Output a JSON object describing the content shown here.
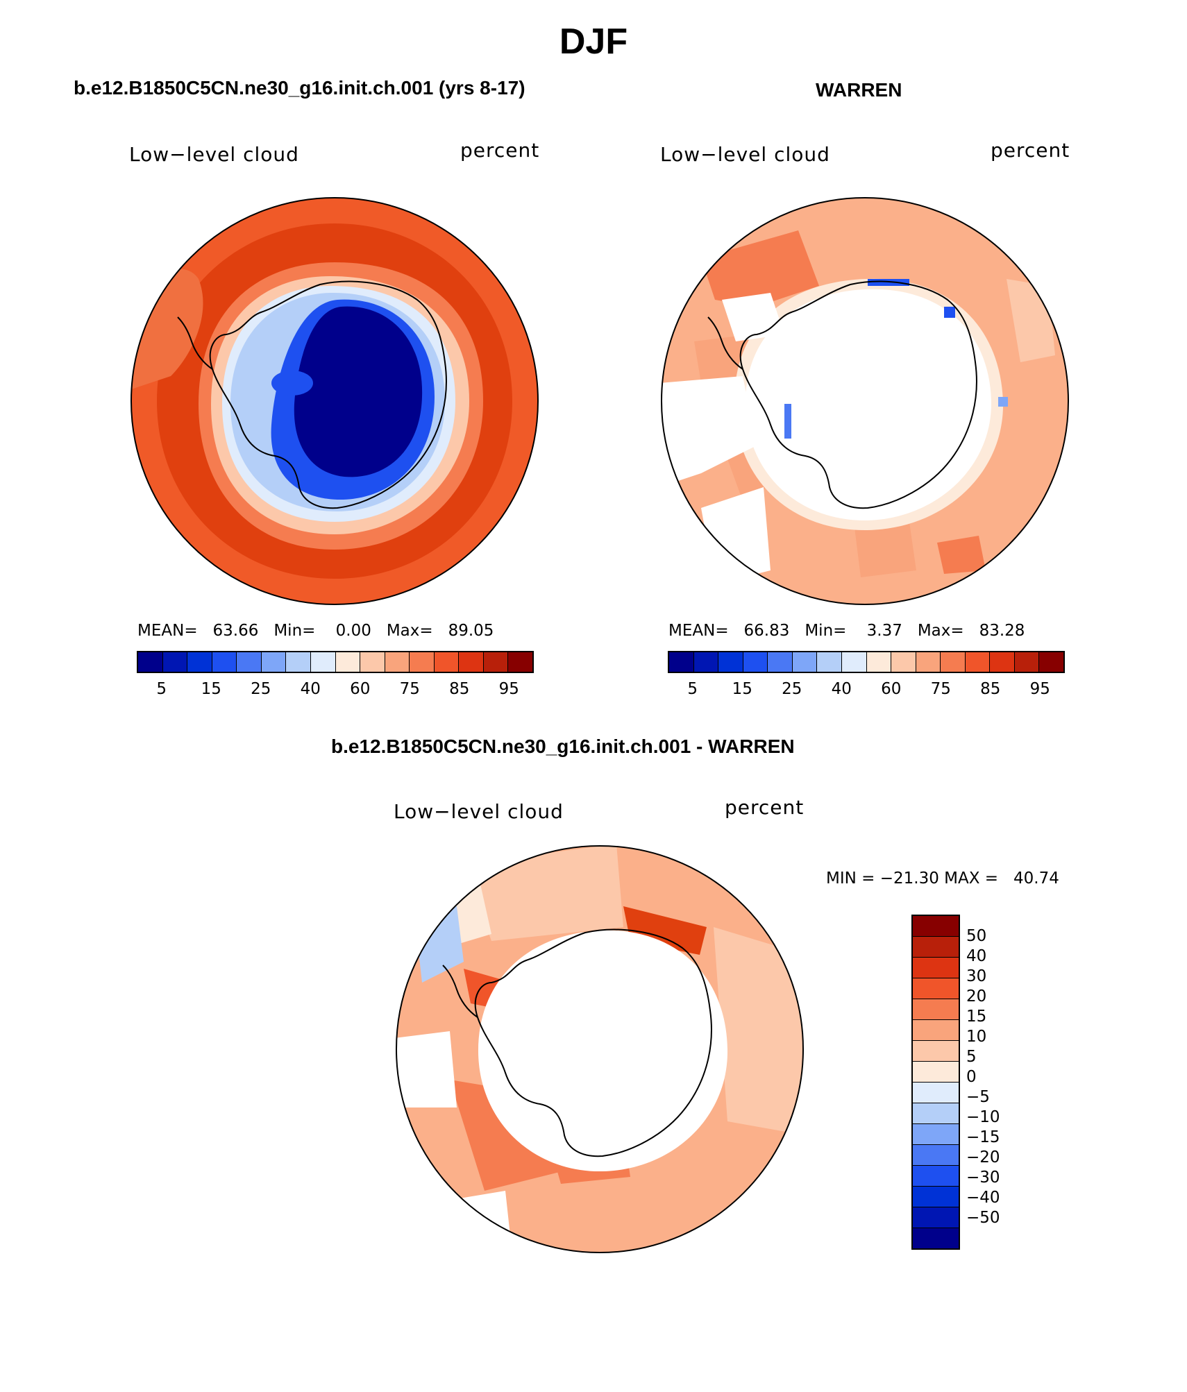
{
  "figure_title": "DJF",
  "panels": [
    {
      "header": "b.e12.B1850C5CN.ne30_g16.init.ch.001 (yrs 8-17)",
      "variable": "Low−level cloud",
      "units": "percent",
      "stats": {
        "mean_label": "MEAN=",
        "mean": "63.66",
        "min_label": "Min=",
        "min": "0.00",
        "max_label": "Max=",
        "max": "89.05"
      }
    },
    {
      "header": "WARREN",
      "variable": "Low−level cloud",
      "units": "percent",
      "stats": {
        "mean_label": "MEAN=",
        "mean": "66.83",
        "min_label": "Min=",
        "min": "3.37",
        "max_label": "Max=",
        "max": "83.28"
      }
    },
    {
      "header": "b.e12.B1850C5CN.ne30_g16.init.ch.001 - WARREN",
      "variable": "Low−level cloud",
      "units": "percent",
      "minmax": "MIN = −21.30 MAX =   40.74"
    }
  ],
  "colorbar_horizontal": {
    "colors": [
      "#00008b",
      "#0016b3",
      "#0032d6",
      "#1e50f0",
      "#4a78f4",
      "#7ea6f8",
      "#b4cff8",
      "#e0ecfc",
      "#fdeada",
      "#fcc8aa",
      "#f9a47c",
      "#f57c50",
      "#f0552a",
      "#dd3412",
      "#b8200a",
      "#870000"
    ],
    "tick_labels": [
      "5",
      "15",
      "25",
      "40",
      "60",
      "75",
      "85",
      "95"
    ]
  },
  "colorbar_vertical": {
    "colors": [
      "#870000",
      "#b8200a",
      "#dd3412",
      "#f0552a",
      "#f57c50",
      "#f9a47c",
      "#fcc8aa",
      "#fdeada",
      "#e0ecfc",
      "#b4cff8",
      "#7ea6f8",
      "#4a78f4",
      "#1e50f0",
      "#0032d6",
      "#0016b3",
      "#00008b"
    ],
    "tick_labels": [
      "50",
      "40",
      "30",
      "20",
      "15",
      "10",
      "5",
      "0",
      "−5",
      "−10",
      "−15",
      "−20",
      "−30",
      "−40",
      "−50"
    ]
  }
}
